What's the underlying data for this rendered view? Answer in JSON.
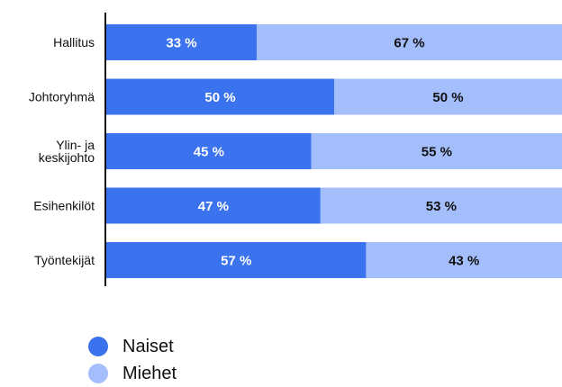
{
  "chart_data": {
    "type": "bar",
    "orientation": "horizontal",
    "stacked": true,
    "categories": [
      "Hallitus",
      "Johtoryhmä",
      "Ylin- ja keskijohto",
      "Esihenkilöt",
      "Työntekijät"
    ],
    "category_lines": [
      [
        "Hallitus"
      ],
      [
        "Johtoryhmä"
      ],
      [
        "Ylin- ja",
        "keskijohto"
      ],
      [
        "Esihenkilöt"
      ],
      [
        "Työntekijät"
      ]
    ],
    "series": [
      {
        "name": "Naiset",
        "values": [
          33,
          50,
          45,
          47,
          57
        ],
        "color": "#3b72ee",
        "label_color": "#ffffff"
      },
      {
        "name": "Miehet",
        "values": [
          67,
          50,
          55,
          53,
          43
        ],
        "color": "#a4bdfb",
        "label_color": "#111111"
      }
    ],
    "value_suffix": " %",
    "xlim": [
      0,
      100
    ],
    "legend_position": "bottom-left",
    "grid": false
  }
}
